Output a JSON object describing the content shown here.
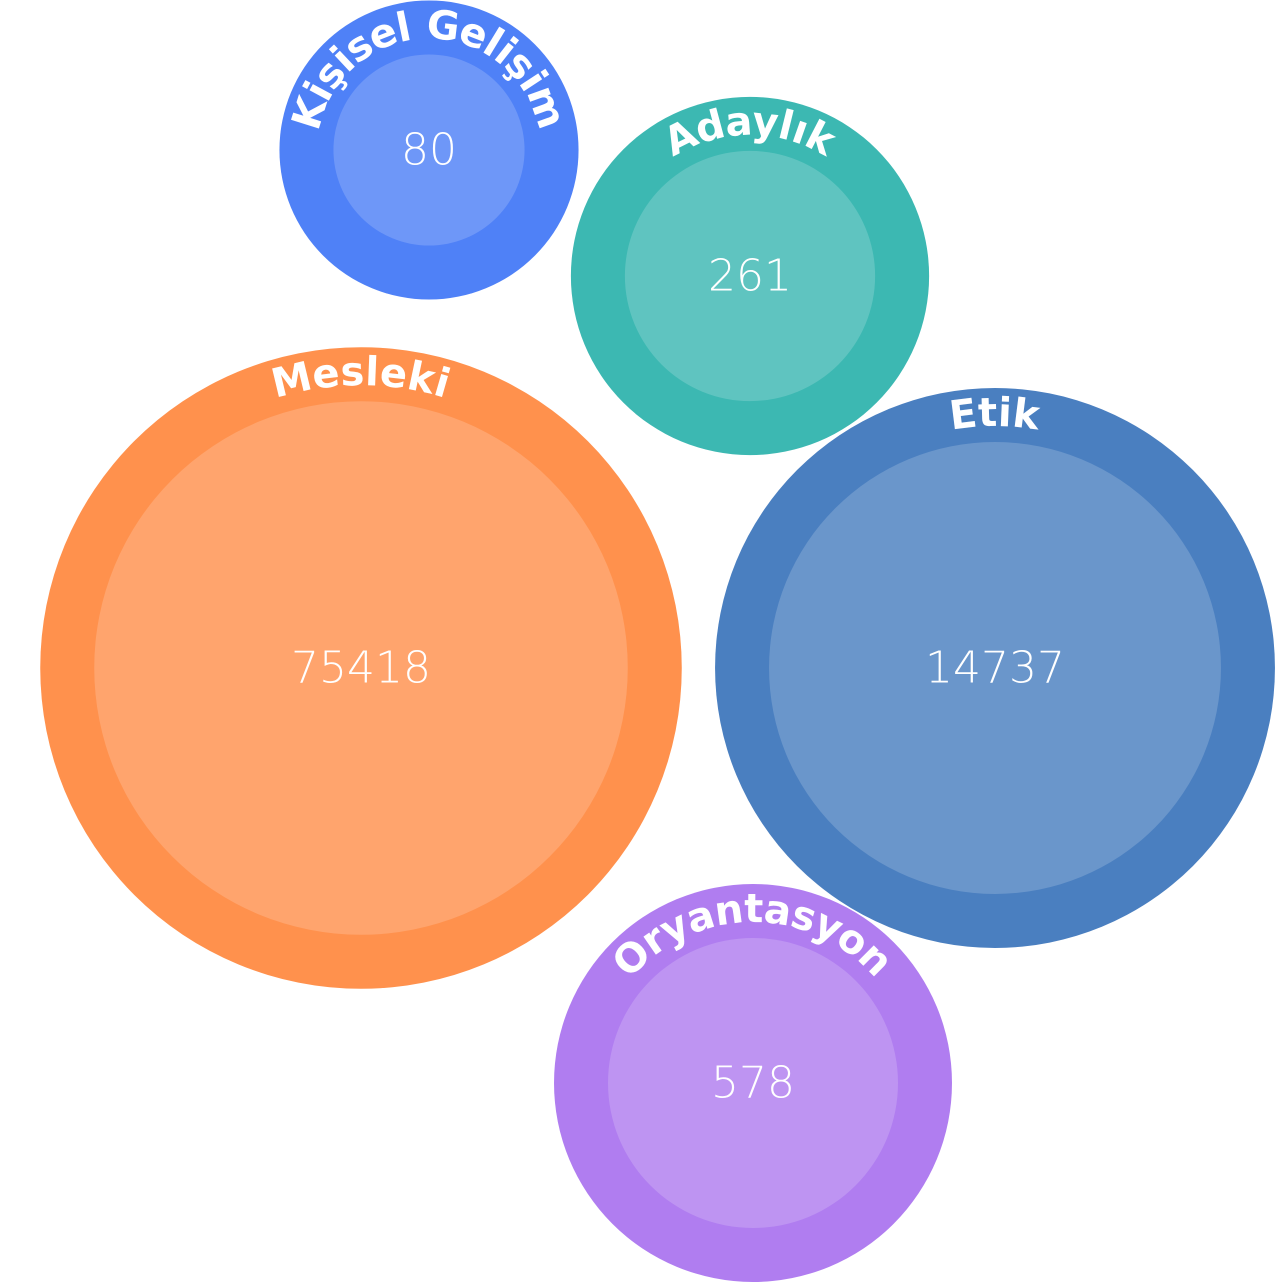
{
  "chart_data": {
    "type": "bubble",
    "categories": [
      "Kişisel Gelişim",
      "Adaylık",
      "Mesleki",
      "Etik",
      "Oryantasyon"
    ],
    "values": [
      80,
      261,
      75418,
      14737,
      578
    ],
    "colors": [
      "#4f81f7",
      "#3cb8b2",
      "#ff914d",
      "#4a7fc0",
      "#b07df0"
    ]
  }
}
